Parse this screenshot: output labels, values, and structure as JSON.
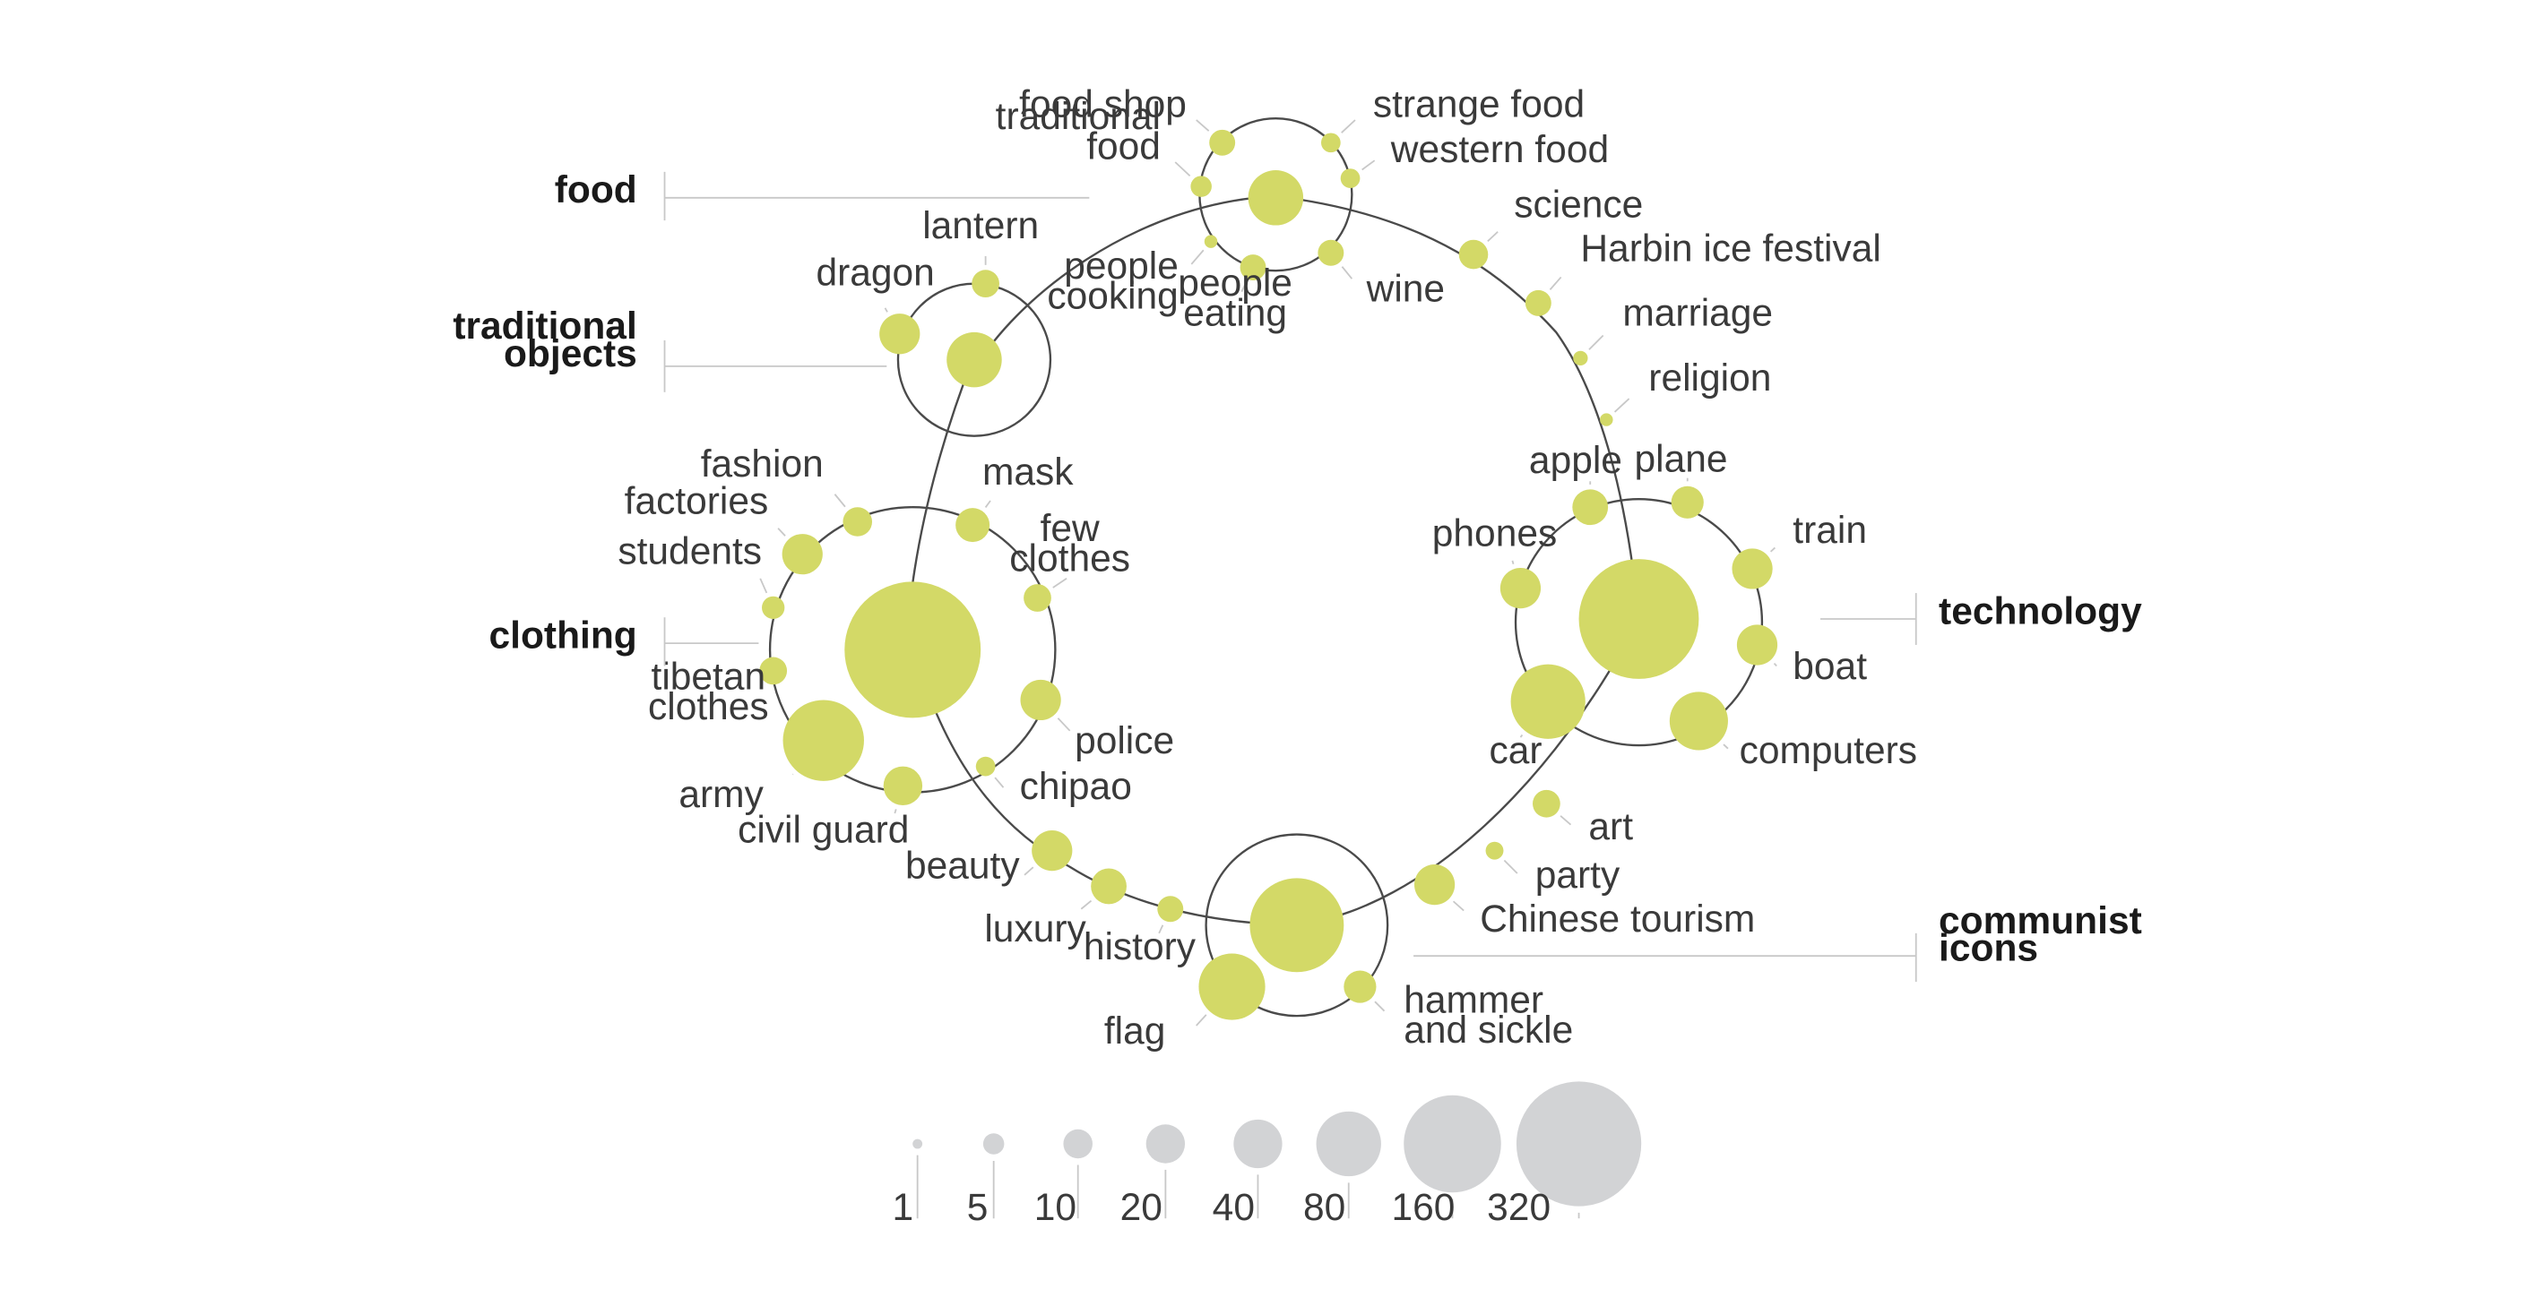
{
  "colors": {
    "bubble": "#d3d967",
    "legend_bubble": "#d2d3d5",
    "line": "#4a4a4a",
    "leader": "#c8c8c8",
    "text": "#3a3a3a"
  },
  "groups": [
    {
      "id": "food",
      "label": [
        "food"
      ]
    },
    {
      "id": "traditional-objects",
      "label": [
        "traditional",
        "objects"
      ]
    },
    {
      "id": "clothing",
      "label": [
        "clothing"
      ]
    },
    {
      "id": "technology",
      "label": [
        "technology"
      ]
    },
    {
      "id": "communist-icons",
      "label": [
        "communist",
        "icons"
      ]
    }
  ],
  "topics": [
    {
      "id": "food-hub",
      "label": []
    },
    {
      "id": "food-shop",
      "label": [
        "food shop"
      ]
    },
    {
      "id": "strange-food",
      "label": [
        "strange food"
      ]
    },
    {
      "id": "western-food",
      "label": [
        "western food"
      ]
    },
    {
      "id": "traditional-food",
      "label": [
        "traditional",
        "food"
      ]
    },
    {
      "id": "people-cooking",
      "label": [
        "people",
        "cooking"
      ]
    },
    {
      "id": "people-eating",
      "label": [
        "people",
        "eating"
      ]
    },
    {
      "id": "wine",
      "label": [
        "wine"
      ]
    },
    {
      "id": "science",
      "label": [
        "science"
      ]
    },
    {
      "id": "harbin-ice-festival",
      "label": [
        "Harbin ice festival"
      ]
    },
    {
      "id": "marriage",
      "label": [
        "marriage"
      ]
    },
    {
      "id": "religion",
      "label": [
        "religion"
      ]
    },
    {
      "id": "traditional-objects-hub",
      "label": []
    },
    {
      "id": "lantern",
      "label": [
        "lantern"
      ]
    },
    {
      "id": "dragon",
      "label": [
        "dragon"
      ]
    },
    {
      "id": "clothing-hub",
      "label": []
    },
    {
      "id": "fashion",
      "label": [
        "fashion"
      ]
    },
    {
      "id": "factories",
      "label": [
        "factories"
      ]
    },
    {
      "id": "students",
      "label": [
        "students"
      ]
    },
    {
      "id": "mask",
      "label": [
        "mask"
      ]
    },
    {
      "id": "few-clothes",
      "label": [
        "few",
        "clothes"
      ]
    },
    {
      "id": "tibetan-clothes",
      "label": [
        "tibetan",
        "clothes"
      ]
    },
    {
      "id": "police",
      "label": [
        "police"
      ]
    },
    {
      "id": "army",
      "label": [
        "army"
      ]
    },
    {
      "id": "civil-guard",
      "label": [
        "civil guard"
      ]
    },
    {
      "id": "chipao",
      "label": [
        "chipao"
      ]
    },
    {
      "id": "technology-hub",
      "label": []
    },
    {
      "id": "apple",
      "label": [
        "apple"
      ]
    },
    {
      "id": "plane",
      "label": [
        "plane"
      ]
    },
    {
      "id": "phones",
      "label": [
        "phones"
      ]
    },
    {
      "id": "train",
      "label": [
        "train"
      ]
    },
    {
      "id": "boat",
      "label": [
        "boat"
      ]
    },
    {
      "id": "car",
      "label": [
        "car"
      ]
    },
    {
      "id": "computers",
      "label": [
        "computers"
      ]
    },
    {
      "id": "art",
      "label": [
        "art"
      ]
    },
    {
      "id": "party",
      "label": [
        "party"
      ]
    },
    {
      "id": "chinese-tourism",
      "label": [
        "Chinese tourism"
      ]
    },
    {
      "id": "communist-hub",
      "label": []
    },
    {
      "id": "flag",
      "label": [
        "flag"
      ]
    },
    {
      "id": "hammer-and-sickle",
      "label": [
        "hammer",
        "and sickle"
      ]
    },
    {
      "id": "beauty",
      "label": [
        "beauty"
      ]
    },
    {
      "id": "luxury",
      "label": [
        "luxury"
      ]
    },
    {
      "id": "history",
      "label": [
        "history"
      ]
    }
  ],
  "legend": [
    {
      "value": 1,
      "label": "1"
    },
    {
      "value": 5,
      "label": "5"
    },
    {
      "value": 10,
      "label": "10"
    },
    {
      "value": 20,
      "label": "20"
    },
    {
      "value": 40,
      "label": "40"
    },
    {
      "value": 80,
      "label": "80"
    },
    {
      "value": 160,
      "label": "160"
    },
    {
      "value": 320,
      "label": "320"
    }
  ]
}
